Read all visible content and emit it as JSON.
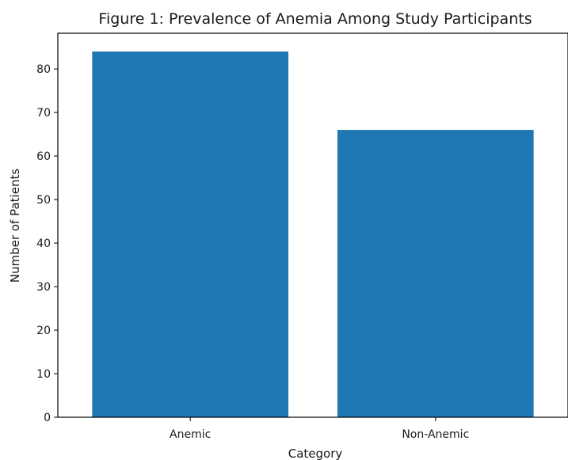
{
  "chart_data": {
    "type": "bar",
    "title": "Figure 1: Prevalence of Anemia Among Study Participants",
    "xlabel": "Category",
    "ylabel": "Number of Patients",
    "categories": [
      "Anemic",
      "Non-Anemic"
    ],
    "values": [
      84,
      66
    ],
    "ylim": [
      0,
      88.2
    ],
    "yticks": [
      0,
      10,
      20,
      30,
      40,
      50,
      60,
      70,
      80
    ],
    "grid": false,
    "bar_color": "#1f77b4"
  }
}
